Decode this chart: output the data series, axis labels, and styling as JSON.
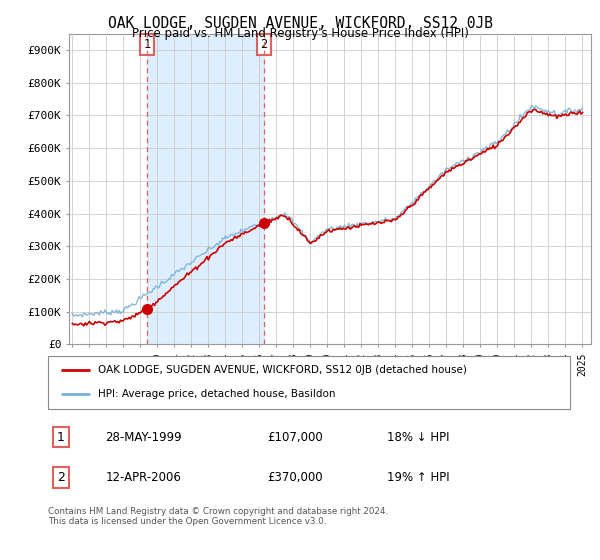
{
  "title": "OAK LODGE, SUGDEN AVENUE, WICKFORD, SS12 0JB",
  "subtitle": "Price paid vs. HM Land Registry's House Price Index (HPI)",
  "legend_line1": "OAK LODGE, SUGDEN AVENUE, WICKFORD, SS12 0JB (detached house)",
  "legend_line2": "HPI: Average price, detached house, Basildon",
  "footnote": "Contains HM Land Registry data © Crown copyright and database right 2024.\nThis data is licensed under the Open Government Licence v3.0.",
  "transaction1_date": "28-MAY-1999",
  "transaction1_price": "£107,000",
  "transaction1_hpi": "18% ↓ HPI",
  "transaction2_date": "12-APR-2006",
  "transaction2_price": "£370,000",
  "transaction2_hpi": "19% ↑ HPI",
  "red_color": "#cc0000",
  "blue_color": "#7ab0d4",
  "dashed_red_color": "#e06060",
  "shade_color": "#ddeeff",
  "ylim": [
    0,
    950000
  ],
  "yticks": [
    0,
    100000,
    200000,
    300000,
    400000,
    500000,
    600000,
    700000,
    800000,
    900000
  ],
  "ytick_labels": [
    "£0",
    "£100K",
    "£200K",
    "£300K",
    "£400K",
    "£500K",
    "£600K",
    "£700K",
    "£800K",
    "£900K"
  ],
  "xlim_start": 1994.8,
  "xlim_end": 2025.5,
  "background_color": "#ffffff",
  "grid_color": "#cccccc",
  "transaction1_year": 1999.38,
  "transaction1_value": 107000,
  "transaction2_year": 2006.27,
  "transaction2_value": 370000
}
